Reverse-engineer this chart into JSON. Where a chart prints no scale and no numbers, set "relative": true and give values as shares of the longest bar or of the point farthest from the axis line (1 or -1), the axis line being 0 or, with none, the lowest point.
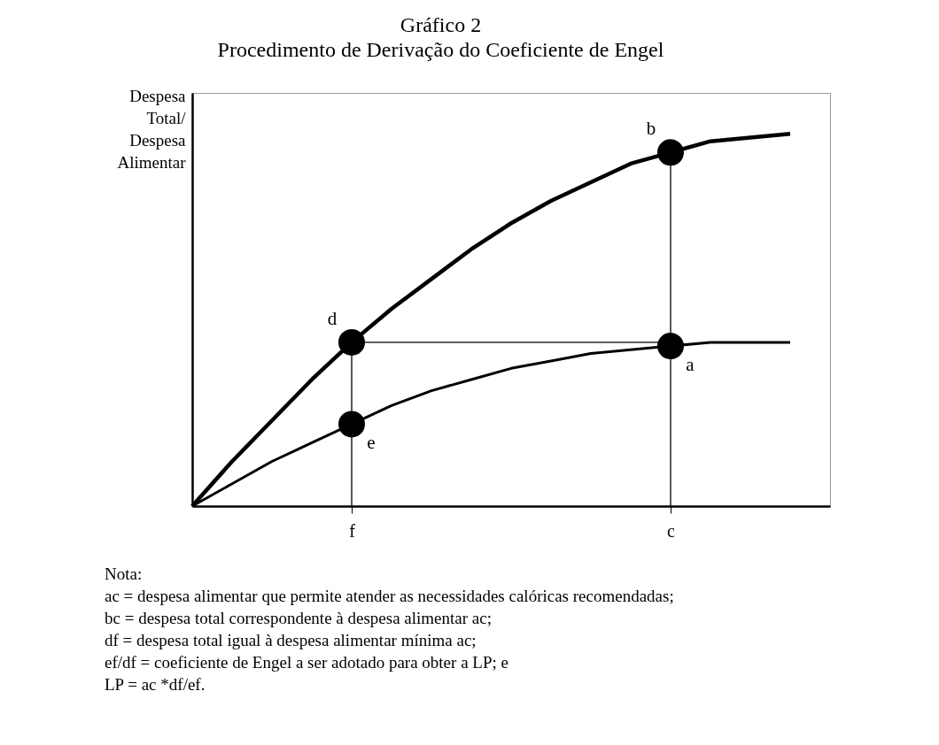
{
  "chart_data": {
    "type": "line",
    "title": "Gráfico 2",
    "subtitle": "Procedimento de Derivação do Coeficiente de Engel",
    "ylabel": "Despesa Total/ Despesa Alimentar",
    "relative": true,
    "categories": [
      null,
      null,
      null,
      null,
      "f",
      null,
      null,
      null,
      null,
      null,
      null,
      null,
      "c",
      null,
      null,
      null,
      null
    ],
    "series": [
      {
        "color": "#000000",
        "values": [
          0,
          0.12,
          0.23,
          0.34,
          0.44,
          0.53,
          0.61,
          0.69,
          0.76,
          0.82,
          0.87,
          0.92,
          0.95,
          0.98,
          0.99,
          1.0,
          null
        ]
      },
      {
        "color": "#000000",
        "values": [
          0,
          0.06,
          0.12,
          0.17,
          0.22,
          0.27,
          0.31,
          0.34,
          0.37,
          0.39,
          0.41,
          0.42,
          0.43,
          0.44,
          0.44,
          0.44,
          null
        ]
      },
      {
        "type": "line",
        "color": "#000000",
        "x": [
          "f",
          "f"
        ],
        "values": [
          0,
          0.44
        ]
      },
      {
        "type": "line",
        "color": "#000000",
        "x": [
          "c",
          "c"
        ],
        "values": [
          0,
          0.95
        ]
      },
      {
        "type": "line",
        "color": "#000000",
        "x": [
          "f",
          "c"
        ],
        "values": [
          0.44,
          0.44
        ]
      },
      {
        "type": "scatter",
        "color": "#000000",
        "x": [
          "f",
          "c",
          "c",
          "f"
        ],
        "values": [
          0.44,
          0.95,
          0.43,
          0.22
        ]
      }
    ],
    "annotations": [
      {
        "text": "d",
        "x": "f",
        "y": 0.44
      },
      {
        "text": "b",
        "x": "c",
        "y": 0.95
      },
      {
        "text": "a",
        "x": "c",
        "y": 0.43
      },
      {
        "text": "e",
        "x": "f",
        "y": 0.22
      },
      "Nota:",
      "ac = despesa alimentar que permite atender as necessidades calóricas recomendadas;",
      "bc = despesa total correspondente à despesa alimentar ac;",
      "df = despesa total igual à despesa alimentar mínima ac;",
      "ef/df = coeficiente de Engel a ser adotado para obter a LP; e",
      "LP = ac *df/ef."
    ]
  }
}
